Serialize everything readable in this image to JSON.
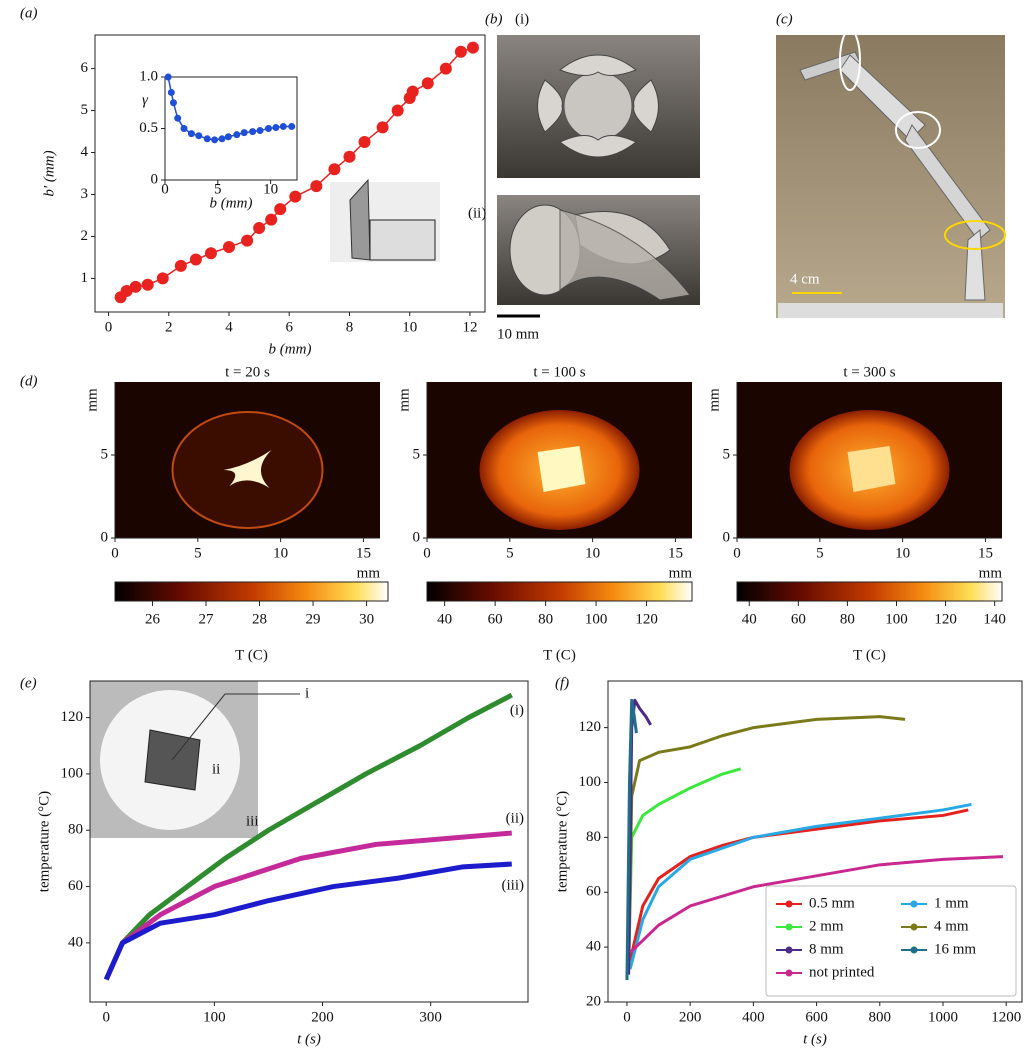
{
  "chart_data": [
    {
      "type": "line",
      "panel": "(a)",
      "x_label": "b (mm)",
      "y_label": "b′ (mm)",
      "xlim": [
        -0.45,
        12.5
      ],
      "ylim": [
        0.2,
        6.8
      ],
      "xticks": [
        0,
        2,
        4,
        6,
        8,
        10,
        12
      ],
      "yticks": [
        1,
        2,
        3,
        4,
        5,
        6
      ],
      "markers": true,
      "series": [
        {
          "color": "#e8231f",
          "x": [
            0.4,
            0.6,
            0.9,
            1.3,
            1.8,
            2.4,
            2.9,
            3.4,
            4.0,
            4.6,
            5.0,
            5.4,
            5.7,
            6.2,
            6.9,
            7.5,
            8.0,
            8.5,
            9.1,
            9.6,
            10.0,
            10.1,
            10.6,
            11.2,
            11.7,
            12.1
          ],
          "values": [
            0.55,
            0.7,
            0.8,
            0.85,
            1.0,
            1.3,
            1.45,
            1.6,
            1.75,
            1.9,
            2.2,
            2.4,
            2.65,
            2.95,
            3.2,
            3.6,
            3.9,
            4.25,
            4.6,
            5.0,
            5.3,
            5.45,
            5.65,
            6.0,
            6.4,
            6.5
          ]
        }
      ]
    },
    {
      "type": "line",
      "x_label": "b (mm)",
      "y_label": "γ",
      "xlim": [
        0,
        12.5
      ],
      "ylim": [
        0,
        1
      ],
      "xticks": [
        0,
        5,
        10
      ],
      "yticks": [
        0,
        0.5,
        {
          "value": 1,
          "label": "1.0"
        }
      ],
      "markers": true,
      "series": [
        {
          "color": "#1f4fd6",
          "x": [
            0.3,
            0.6,
            0.8,
            1.2,
            1.8,
            2.5,
            3.2,
            4.0,
            4.7,
            5.4,
            6.0,
            6.8,
            7.5,
            8.3,
            9.0,
            9.8,
            10.5,
            11.2,
            12.0
          ],
          "values": [
            1.0,
            0.85,
            0.75,
            0.6,
            0.5,
            0.45,
            0.43,
            0.4,
            0.39,
            0.4,
            0.42,
            0.44,
            0.46,
            0.47,
            0.48,
            0.5,
            0.51,
            0.52,
            0.52
          ]
        }
      ]
    },
    {
      "type": "heatmap",
      "panel": "(d)",
      "title": "t = 20 s",
      "x_label": "mm",
      "y_label": "mm",
      "xlim": [
        0,
        16
      ],
      "ylim": [
        0,
        9.4
      ],
      "xticks": [
        0,
        5,
        10,
        15
      ],
      "yticks": [
        0,
        5
      ],
      "colorbar": {
        "label": "T (C)",
        "lim": [
          25.3,
          30.4
        ],
        "ticks": [
          26,
          27,
          28,
          29,
          30
        ]
      }
    },
    {
      "type": "heatmap",
      "title": "t = 100 s",
      "x_label": "mm",
      "y_label": "mm",
      "xlim": [
        0,
        16
      ],
      "ylim": [
        0,
        9.4
      ],
      "xticks": [
        0,
        5,
        10,
        15
      ],
      "yticks": [
        0,
        5
      ],
      "colorbar": {
        "label": "T (C)",
        "lim": [
          33,
          138
        ],
        "ticks": [
          40,
          60,
          80,
          100,
          120
        ]
      }
    },
    {
      "type": "heatmap",
      "title": "t = 300 s",
      "x_label": "mm",
      "y_label": "mm",
      "xlim": [
        0,
        16
      ],
      "ylim": [
        0,
        9.4
      ],
      "xticks": [
        0,
        5,
        10,
        15
      ],
      "yticks": [
        0,
        5
      ],
      "colorbar": {
        "label": "T (C)",
        "lim": [
          35,
          143
        ],
        "ticks": [
          40,
          60,
          80,
          100,
          120,
          140
        ]
      }
    },
    {
      "type": "line",
      "panel": "(e)",
      "x_label": "t (s)",
      "y_label": "temperature  (°C)",
      "xlim": [
        -15,
        390
      ],
      "ylim": [
        19,
        133
      ],
      "xticks": [
        0,
        100,
        200,
        300
      ],
      "yticks": [
        40,
        60,
        80,
        100,
        120
      ],
      "line_width": 5,
      "inset_labels": [
        "i",
        "ii",
        "iii"
      ],
      "series": [
        {
          "color": "#2e8b2e",
          "end_label": "(i)",
          "x": [
            0,
            15,
            40,
            75,
            110,
            150,
            195,
            240,
            290,
            335,
            375
          ],
          "values": [
            27,
            40,
            50,
            60,
            70,
            80,
            90,
            100,
            110,
            120,
            128
          ]
        },
        {
          "color": "#c42a9a",
          "end_label": "(ii)",
          "x": [
            0,
            15,
            50,
            100,
            180,
            250,
            375
          ],
          "values": [
            27,
            40,
            50,
            60,
            70,
            75,
            79
          ]
        },
        {
          "color": "#1c1ccc",
          "end_label": "(iii)",
          "x": [
            0,
            15,
            50,
            100,
            150,
            210,
            270,
            330,
            375
          ],
          "values": [
            27,
            40,
            47,
            50,
            55,
            60,
            63,
            67,
            68
          ]
        }
      ]
    },
    {
      "type": "line",
      "panel": "(f)",
      "x_label": "t (s)",
      "y_label": "temperature  (°C)",
      "xlim": [
        -60,
        1250
      ],
      "ylim": [
        20,
        137
      ],
      "xticks": [
        0,
        200,
        400,
        600,
        800,
        1000,
        1200
      ],
      "yticks": [
        20,
        40,
        60,
        80,
        100,
        120
      ],
      "line_width": 3,
      "legend": "lower right",
      "series": [
        {
          "name": "0.5 mm",
          "color": "#e6211c",
          "x": [
            10,
            50,
            100,
            200,
            300,
            400,
            600,
            800,
            1000,
            1080
          ],
          "values": [
            35,
            55,
            65,
            73,
            77,
            80,
            83,
            86,
            88,
            90
          ]
        },
        {
          "name": "1 mm",
          "color": "#29a8e6",
          "x": [
            10,
            50,
            100,
            200,
            300,
            400,
            600,
            800,
            1000,
            1090
          ],
          "values": [
            32,
            50,
            62,
            72,
            76,
            80,
            84,
            87,
            90,
            92
          ]
        },
        {
          "name": "2 mm",
          "color": "#3be83b",
          "x": [
            5,
            15,
            50,
            100,
            200,
            300,
            360
          ],
          "values": [
            30,
            80,
            88,
            92,
            98,
            103,
            105
          ]
        },
        {
          "name": "4 mm",
          "color": "#7a7a1a",
          "x": [
            5,
            15,
            40,
            100,
            200,
            300,
            400,
            600,
            800,
            880
          ],
          "values": [
            30,
            95,
            108,
            111,
            113,
            117,
            120,
            123,
            124,
            123
          ]
        },
        {
          "name": "8 mm",
          "color": "#4b2a8c",
          "x": [
            5,
            15,
            25,
            40,
            60,
            75
          ],
          "values": [
            30,
            120,
            130,
            127,
            124,
            121
          ]
        },
        {
          "name": "16 mm",
          "color": "#1f6f8b",
          "x": [
            0,
            8,
            15,
            22,
            30
          ],
          "values": [
            28,
            100,
            130,
            125,
            118
          ]
        },
        {
          "name": "not printed",
          "color": "#c8288f",
          "x": [
            10,
            100,
            200,
            400,
            600,
            800,
            1000,
            1190
          ],
          "values": [
            38,
            48,
            55,
            62,
            66,
            70,
            72,
            73
          ]
        }
      ]
    }
  ],
  "photos": {
    "b": {
      "panel": "(b)",
      "labels": [
        "(i)",
        "(ii)"
      ],
      "scale": "10 mm"
    },
    "c": {
      "panel": "(c)",
      "scale": "4 cm"
    }
  }
}
